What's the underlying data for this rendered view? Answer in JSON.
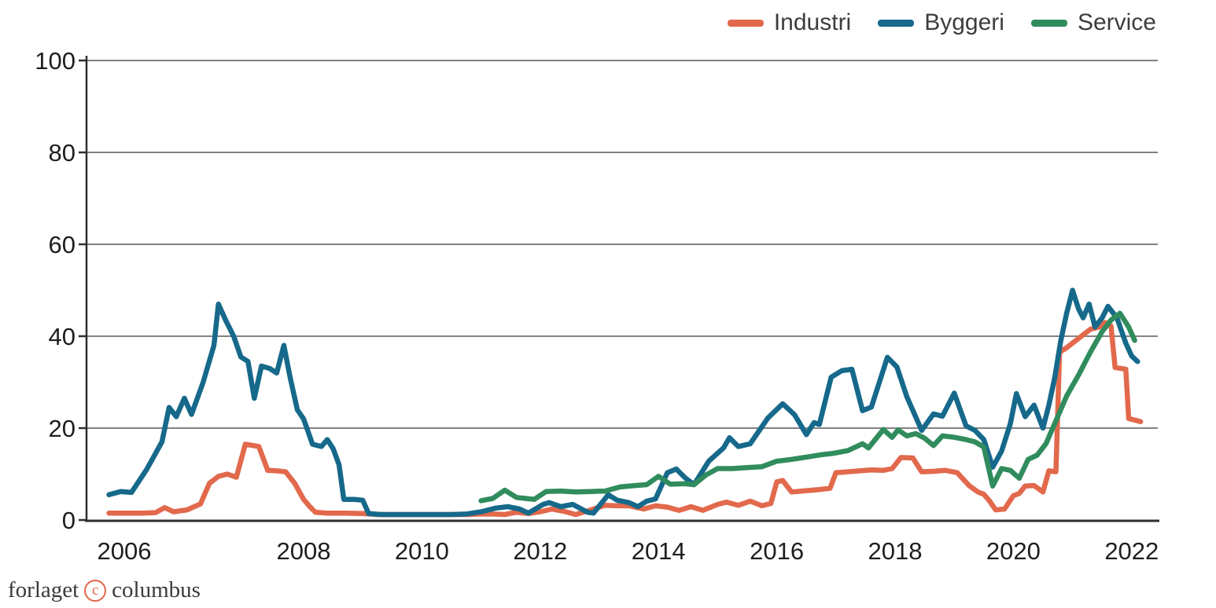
{
  "legend": {
    "items": [
      {
        "label": "Industri",
        "color": "#e2694c"
      },
      {
        "label": "Byggeri",
        "color": "#16698b"
      },
      {
        "label": "Service",
        "color": "#318c5d"
      }
    ]
  },
  "footer": {
    "brand_left": "forlaget",
    "copyright_symbol": "c",
    "brand_right": "columbus"
  },
  "colors": {
    "gridline": "#828282",
    "axis": "#2e2e2e",
    "tick_text": "#1e1e1e"
  },
  "chart_data": {
    "type": "line",
    "title": "",
    "xlabel": "",
    "ylabel": "",
    "ylim": [
      0,
      100
    ],
    "grid": "horizontal",
    "legend_position": "top-right",
    "x_tick_labels": [
      "2006",
      "2008",
      "2010",
      "2012",
      "2014",
      "2016",
      "2018",
      "2020",
      "2022"
    ],
    "x_tick_years": [
      2006,
      2008,
      2010,
      2012,
      2014,
      2016,
      2018,
      2020,
      2022
    ],
    "y_ticks": [
      0,
      20,
      40,
      60,
      80,
      100
    ],
    "series": [
      {
        "name": "Industri",
        "color": "#e2694c",
        "points": [
          [
            2005.83,
            1.5
          ],
          [
            2006.0,
            1.5
          ],
          [
            2006.2,
            1.5
          ],
          [
            2006.35,
            1.6
          ],
          [
            2006.45,
            2.7
          ],
          [
            2006.55,
            1.8
          ],
          [
            2006.7,
            2.2
          ],
          [
            2006.85,
            3.5
          ],
          [
            2006.95,
            8.0
          ],
          [
            2007.05,
            9.5
          ],
          [
            2007.15,
            10.0
          ],
          [
            2007.25,
            9.3
          ],
          [
            2007.35,
            16.5
          ],
          [
            2007.5,
            16.0
          ],
          [
            2007.6,
            10.8
          ],
          [
            2007.7,
            10.7
          ],
          [
            2007.8,
            10.5
          ],
          [
            2007.9,
            8.0
          ],
          [
            2008.0,
            4.5
          ],
          [
            2008.1,
            3.0
          ],
          [
            2008.2,
            1.7
          ],
          [
            2008.4,
            1.5
          ],
          [
            2008.7,
            1.5
          ],
          [
            2009.0,
            1.4
          ],
          [
            2009.25,
            1.2
          ],
          [
            2009.5,
            1.2
          ],
          [
            2009.75,
            1.2
          ],
          [
            2010.0,
            1.2
          ],
          [
            2010.25,
            1.2
          ],
          [
            2010.5,
            1.2
          ],
          [
            2010.75,
            1.2
          ],
          [
            2011.0,
            1.3
          ],
          [
            2011.2,
            1.3
          ],
          [
            2011.4,
            1.2
          ],
          [
            2011.6,
            1.7
          ],
          [
            2011.8,
            1.4
          ],
          [
            2012.0,
            1.8
          ],
          [
            2012.2,
            2.4
          ],
          [
            2012.4,
            1.9
          ],
          [
            2012.6,
            1.2
          ],
          [
            2012.8,
            2.0
          ],
          [
            2013.1,
            3.2
          ],
          [
            2013.3,
            3.1
          ],
          [
            2013.5,
            3.1
          ],
          [
            2013.75,
            2.4
          ],
          [
            2013.95,
            3.1
          ],
          [
            2014.15,
            2.8
          ],
          [
            2014.35,
            2.1
          ],
          [
            2014.55,
            2.9
          ],
          [
            2014.75,
            2.1
          ],
          [
            2015.0,
            3.4
          ],
          [
            2015.15,
            3.9
          ],
          [
            2015.35,
            3.2
          ],
          [
            2015.55,
            4.1
          ],
          [
            2015.75,
            3.1
          ],
          [
            2015.9,
            3.6
          ],
          [
            2016.0,
            8.3
          ],
          [
            2016.1,
            8.6
          ],
          [
            2016.25,
            6.1
          ],
          [
            2016.5,
            6.4
          ],
          [
            2016.7,
            6.6
          ],
          [
            2016.9,
            6.9
          ],
          [
            2017.0,
            10.3
          ],
          [
            2017.2,
            10.5
          ],
          [
            2017.4,
            10.7
          ],
          [
            2017.6,
            10.9
          ],
          [
            2017.8,
            10.8
          ],
          [
            2017.95,
            11.2
          ],
          [
            2018.1,
            13.6
          ],
          [
            2018.3,
            13.5
          ],
          [
            2018.45,
            10.5
          ],
          [
            2018.65,
            10.6
          ],
          [
            2018.85,
            10.8
          ],
          [
            2019.05,
            10.3
          ],
          [
            2019.25,
            7.5
          ],
          [
            2019.4,
            6.1
          ],
          [
            2019.5,
            5.6
          ],
          [
            2019.6,
            4.1
          ],
          [
            2019.7,
            2.2
          ],
          [
            2019.85,
            2.4
          ],
          [
            2020.0,
            5.3
          ],
          [
            2020.1,
            5.8
          ],
          [
            2020.2,
            7.4
          ],
          [
            2020.35,
            7.5
          ],
          [
            2020.5,
            6.1
          ],
          [
            2020.6,
            10.7
          ],
          [
            2020.72,
            10.5
          ],
          [
            2020.78,
            36.5
          ],
          [
            2020.9,
            37.5
          ],
          [
            2021.1,
            39.5
          ],
          [
            2021.3,
            41.5
          ],
          [
            2021.45,
            42.0
          ],
          [
            2021.55,
            43.0
          ],
          [
            2021.65,
            42.2
          ],
          [
            2021.72,
            33.2
          ],
          [
            2021.9,
            32.8
          ],
          [
            2021.95,
            22.1
          ],
          [
            2022.15,
            21.4
          ]
        ]
      },
      {
        "name": "Byggeri",
        "color": "#16698b",
        "points": [
          [
            2005.83,
            5.5
          ],
          [
            2005.96,
            6.2
          ],
          [
            2006.08,
            6.0
          ],
          [
            2006.25,
            11.0
          ],
          [
            2006.42,
            17.0
          ],
          [
            2006.5,
            24.5
          ],
          [
            2006.58,
            22.5
          ],
          [
            2006.67,
            26.5
          ],
          [
            2006.75,
            23.0
          ],
          [
            2006.88,
            30.0
          ],
          [
            2007.0,
            38.0
          ],
          [
            2007.05,
            47.0
          ],
          [
            2007.13,
            43.5
          ],
          [
            2007.22,
            40.0
          ],
          [
            2007.3,
            35.5
          ],
          [
            2007.38,
            34.5
          ],
          [
            2007.45,
            26.5
          ],
          [
            2007.53,
            33.5
          ],
          [
            2007.62,
            33.0
          ],
          [
            2007.7,
            32.0
          ],
          [
            2007.78,
            38.0
          ],
          [
            2007.85,
            31.0
          ],
          [
            2007.93,
            24.0
          ],
          [
            2008.0,
            22.0
          ],
          [
            2008.15,
            16.5
          ],
          [
            2008.3,
            16.0
          ],
          [
            2008.4,
            17.5
          ],
          [
            2008.5,
            15.5
          ],
          [
            2008.6,
            12.0
          ],
          [
            2008.68,
            4.5
          ],
          [
            2008.85,
            4.5
          ],
          [
            2009.0,
            4.3
          ],
          [
            2009.1,
            1.4
          ],
          [
            2009.3,
            1.2
          ],
          [
            2009.6,
            1.2
          ],
          [
            2009.9,
            1.2
          ],
          [
            2010.2,
            1.2
          ],
          [
            2010.5,
            1.2
          ],
          [
            2010.75,
            1.3
          ],
          [
            2011.0,
            1.8
          ],
          [
            2011.25,
            2.6
          ],
          [
            2011.45,
            2.9
          ],
          [
            2011.65,
            2.4
          ],
          [
            2011.8,
            1.5
          ],
          [
            2012.05,
            3.4
          ],
          [
            2012.15,
            3.8
          ],
          [
            2012.35,
            2.9
          ],
          [
            2012.55,
            3.4
          ],
          [
            2012.8,
            1.7
          ],
          [
            2012.9,
            1.5
          ],
          [
            2013.15,
            5.5
          ],
          [
            2013.3,
            4.3
          ],
          [
            2013.5,
            3.8
          ],
          [
            2013.65,
            2.9
          ],
          [
            2013.8,
            4.1
          ],
          [
            2013.95,
            4.6
          ],
          [
            2014.15,
            10.3
          ],
          [
            2014.3,
            11.1
          ],
          [
            2014.45,
            9.2
          ],
          [
            2014.6,
            7.7
          ],
          [
            2014.85,
            12.8
          ],
          [
            2015.1,
            15.7
          ],
          [
            2015.2,
            17.9
          ],
          [
            2015.35,
            16.0
          ],
          [
            2015.55,
            16.6
          ],
          [
            2015.85,
            22.2
          ],
          [
            2016.1,
            25.3
          ],
          [
            2016.3,
            22.9
          ],
          [
            2016.5,
            18.6
          ],
          [
            2016.63,
            21.2
          ],
          [
            2016.72,
            20.8
          ],
          [
            2016.92,
            31.1
          ],
          [
            2017.1,
            32.5
          ],
          [
            2017.27,
            32.8
          ],
          [
            2017.45,
            23.8
          ],
          [
            2017.6,
            24.6
          ],
          [
            2017.87,
            35.4
          ],
          [
            2018.03,
            33.3
          ],
          [
            2018.2,
            26.8
          ],
          [
            2018.45,
            19.5
          ],
          [
            2018.65,
            23.1
          ],
          [
            2018.8,
            22.6
          ],
          [
            2019.0,
            27.6
          ],
          [
            2019.2,
            20.5
          ],
          [
            2019.35,
            19.5
          ],
          [
            2019.5,
            17.5
          ],
          [
            2019.65,
            11.5
          ],
          [
            2019.8,
            15.0
          ],
          [
            2019.95,
            21.0
          ],
          [
            2020.05,
            27.5
          ],
          [
            2020.2,
            22.5
          ],
          [
            2020.35,
            25.0
          ],
          [
            2020.5,
            20.0
          ],
          [
            2020.6,
            25.0
          ],
          [
            2020.7,
            31.0
          ],
          [
            2020.8,
            39.0
          ],
          [
            2020.9,
            45.0
          ],
          [
            2021.0,
            50.0
          ],
          [
            2021.1,
            46.0
          ],
          [
            2021.18,
            44.0
          ],
          [
            2021.28,
            47.0
          ],
          [
            2021.38,
            42.0
          ],
          [
            2021.5,
            44.0
          ],
          [
            2021.6,
            46.5
          ],
          [
            2021.75,
            44.0
          ],
          [
            2021.9,
            38.5
          ],
          [
            2022.0,
            35.7
          ],
          [
            2022.1,
            34.5
          ]
        ]
      },
      {
        "name": "Service",
        "color": "#318c5d",
        "points": [
          [
            2011.0,
            4.2
          ],
          [
            2011.2,
            4.7
          ],
          [
            2011.4,
            6.5
          ],
          [
            2011.6,
            4.9
          ],
          [
            2011.75,
            4.7
          ],
          [
            2011.9,
            4.5
          ],
          [
            2012.1,
            6.2
          ],
          [
            2012.35,
            6.3
          ],
          [
            2012.6,
            6.1
          ],
          [
            2012.85,
            6.2
          ],
          [
            2013.1,
            6.3
          ],
          [
            2013.35,
            7.2
          ],
          [
            2013.6,
            7.5
          ],
          [
            2013.8,
            7.7
          ],
          [
            2014.0,
            9.5
          ],
          [
            2014.2,
            7.8
          ],
          [
            2014.45,
            7.9
          ],
          [
            2014.6,
            7.7
          ],
          [
            2014.8,
            9.8
          ],
          [
            2015.0,
            11.2
          ],
          [
            2015.25,
            11.2
          ],
          [
            2015.5,
            11.4
          ],
          [
            2015.75,
            11.6
          ],
          [
            2016.0,
            12.8
          ],
          [
            2016.25,
            13.2
          ],
          [
            2016.5,
            13.7
          ],
          [
            2016.75,
            14.2
          ],
          [
            2016.95,
            14.5
          ],
          [
            2017.2,
            15.1
          ],
          [
            2017.45,
            16.6
          ],
          [
            2017.55,
            15.7
          ],
          [
            2017.8,
            19.7
          ],
          [
            2017.95,
            18.0
          ],
          [
            2018.05,
            19.6
          ],
          [
            2018.2,
            18.3
          ],
          [
            2018.35,
            18.8
          ],
          [
            2018.5,
            17.8
          ],
          [
            2018.65,
            16.2
          ],
          [
            2018.8,
            18.3
          ],
          [
            2019.0,
            18.0
          ],
          [
            2019.2,
            17.5
          ],
          [
            2019.35,
            17.0
          ],
          [
            2019.5,
            15.9
          ],
          [
            2019.65,
            7.4
          ],
          [
            2019.8,
            11.2
          ],
          [
            2019.95,
            10.8
          ],
          [
            2020.1,
            9.1
          ],
          [
            2020.25,
            13.2
          ],
          [
            2020.4,
            14.1
          ],
          [
            2020.55,
            16.6
          ],
          [
            2020.7,
            21.0
          ],
          [
            2020.9,
            27.0
          ],
          [
            2021.1,
            31.5
          ],
          [
            2021.3,
            36.5
          ],
          [
            2021.5,
            41.0
          ],
          [
            2021.65,
            43.5
          ],
          [
            2021.8,
            45.0
          ],
          [
            2021.95,
            42.0
          ],
          [
            2022.05,
            39.1
          ]
        ]
      }
    ]
  }
}
